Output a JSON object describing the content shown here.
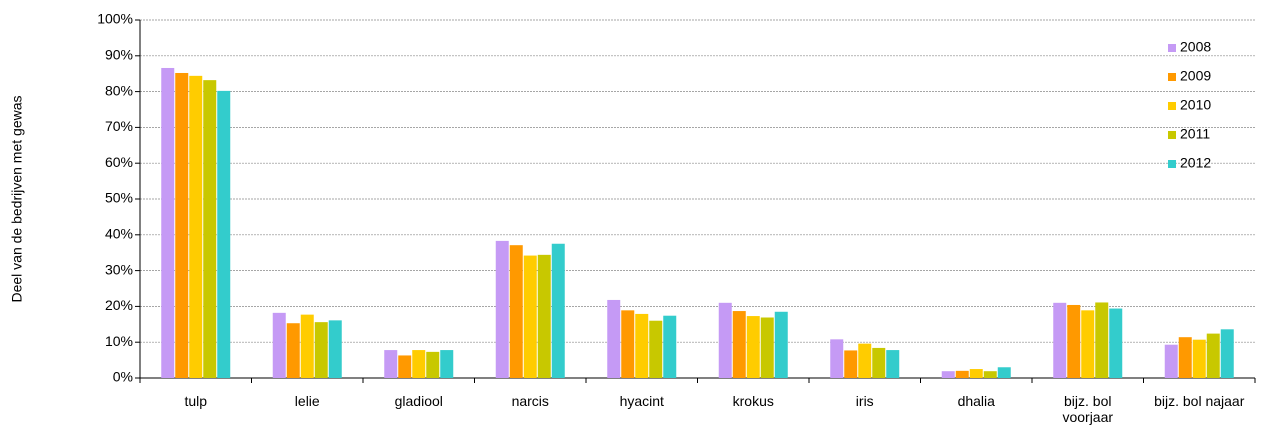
{
  "chart_data": {
    "type": "bar",
    "y_label": "Deel van de bedrijven met gewas",
    "categories": [
      "tulp",
      "lelie",
      "gladiool",
      "narcis",
      "hyacint",
      "krokus",
      "iris",
      "dhalia",
      "bijz. bol voorjaar",
      "bijz. bol najaar"
    ],
    "series": [
      {
        "name": "2008",
        "color": "#c59af5",
        "values": [
          86.6,
          18.2,
          7.8,
          38.3,
          21.8,
          21.0,
          10.8,
          1.9,
          21.0,
          9.3
        ]
      },
      {
        "name": "2009",
        "color": "#ff9900",
        "values": [
          85.2,
          15.3,
          6.3,
          37.1,
          18.9,
          18.7,
          7.7,
          2.0,
          20.4,
          11.4
        ]
      },
      {
        "name": "2010",
        "color": "#ffcc00",
        "values": [
          84.4,
          17.7,
          7.8,
          34.2,
          17.9,
          17.3,
          9.6,
          2.5,
          18.9,
          10.7
        ]
      },
      {
        "name": "2011",
        "color": "#c8c800",
        "values": [
          83.2,
          15.6,
          7.3,
          34.4,
          16.0,
          16.9,
          8.4,
          1.9,
          21.1,
          12.4
        ]
      },
      {
        "name": "2012",
        "color": "#33cccc",
        "values": [
          80.2,
          16.1,
          7.8,
          37.5,
          17.4,
          18.5,
          7.8,
          3.0,
          19.4,
          13.6
        ]
      }
    ],
    "ylim": [
      0,
      100
    ],
    "yticks": [
      {
        "value": 0,
        "label": "0%"
      },
      {
        "value": 10,
        "label": "10%"
      },
      {
        "value": 20,
        "label": "20%"
      },
      {
        "value": 30,
        "label": "30%"
      },
      {
        "value": 40,
        "label": "40%"
      },
      {
        "value": 50,
        "label": "50%"
      },
      {
        "value": 60,
        "label": "60%"
      },
      {
        "value": 70,
        "label": "70%"
      },
      {
        "value": 80,
        "label": "80%"
      },
      {
        "value": 90,
        "label": "90%"
      },
      {
        "value": 100,
        "label": "100%"
      }
    ],
    "grid": true,
    "legend": "upper right"
  }
}
